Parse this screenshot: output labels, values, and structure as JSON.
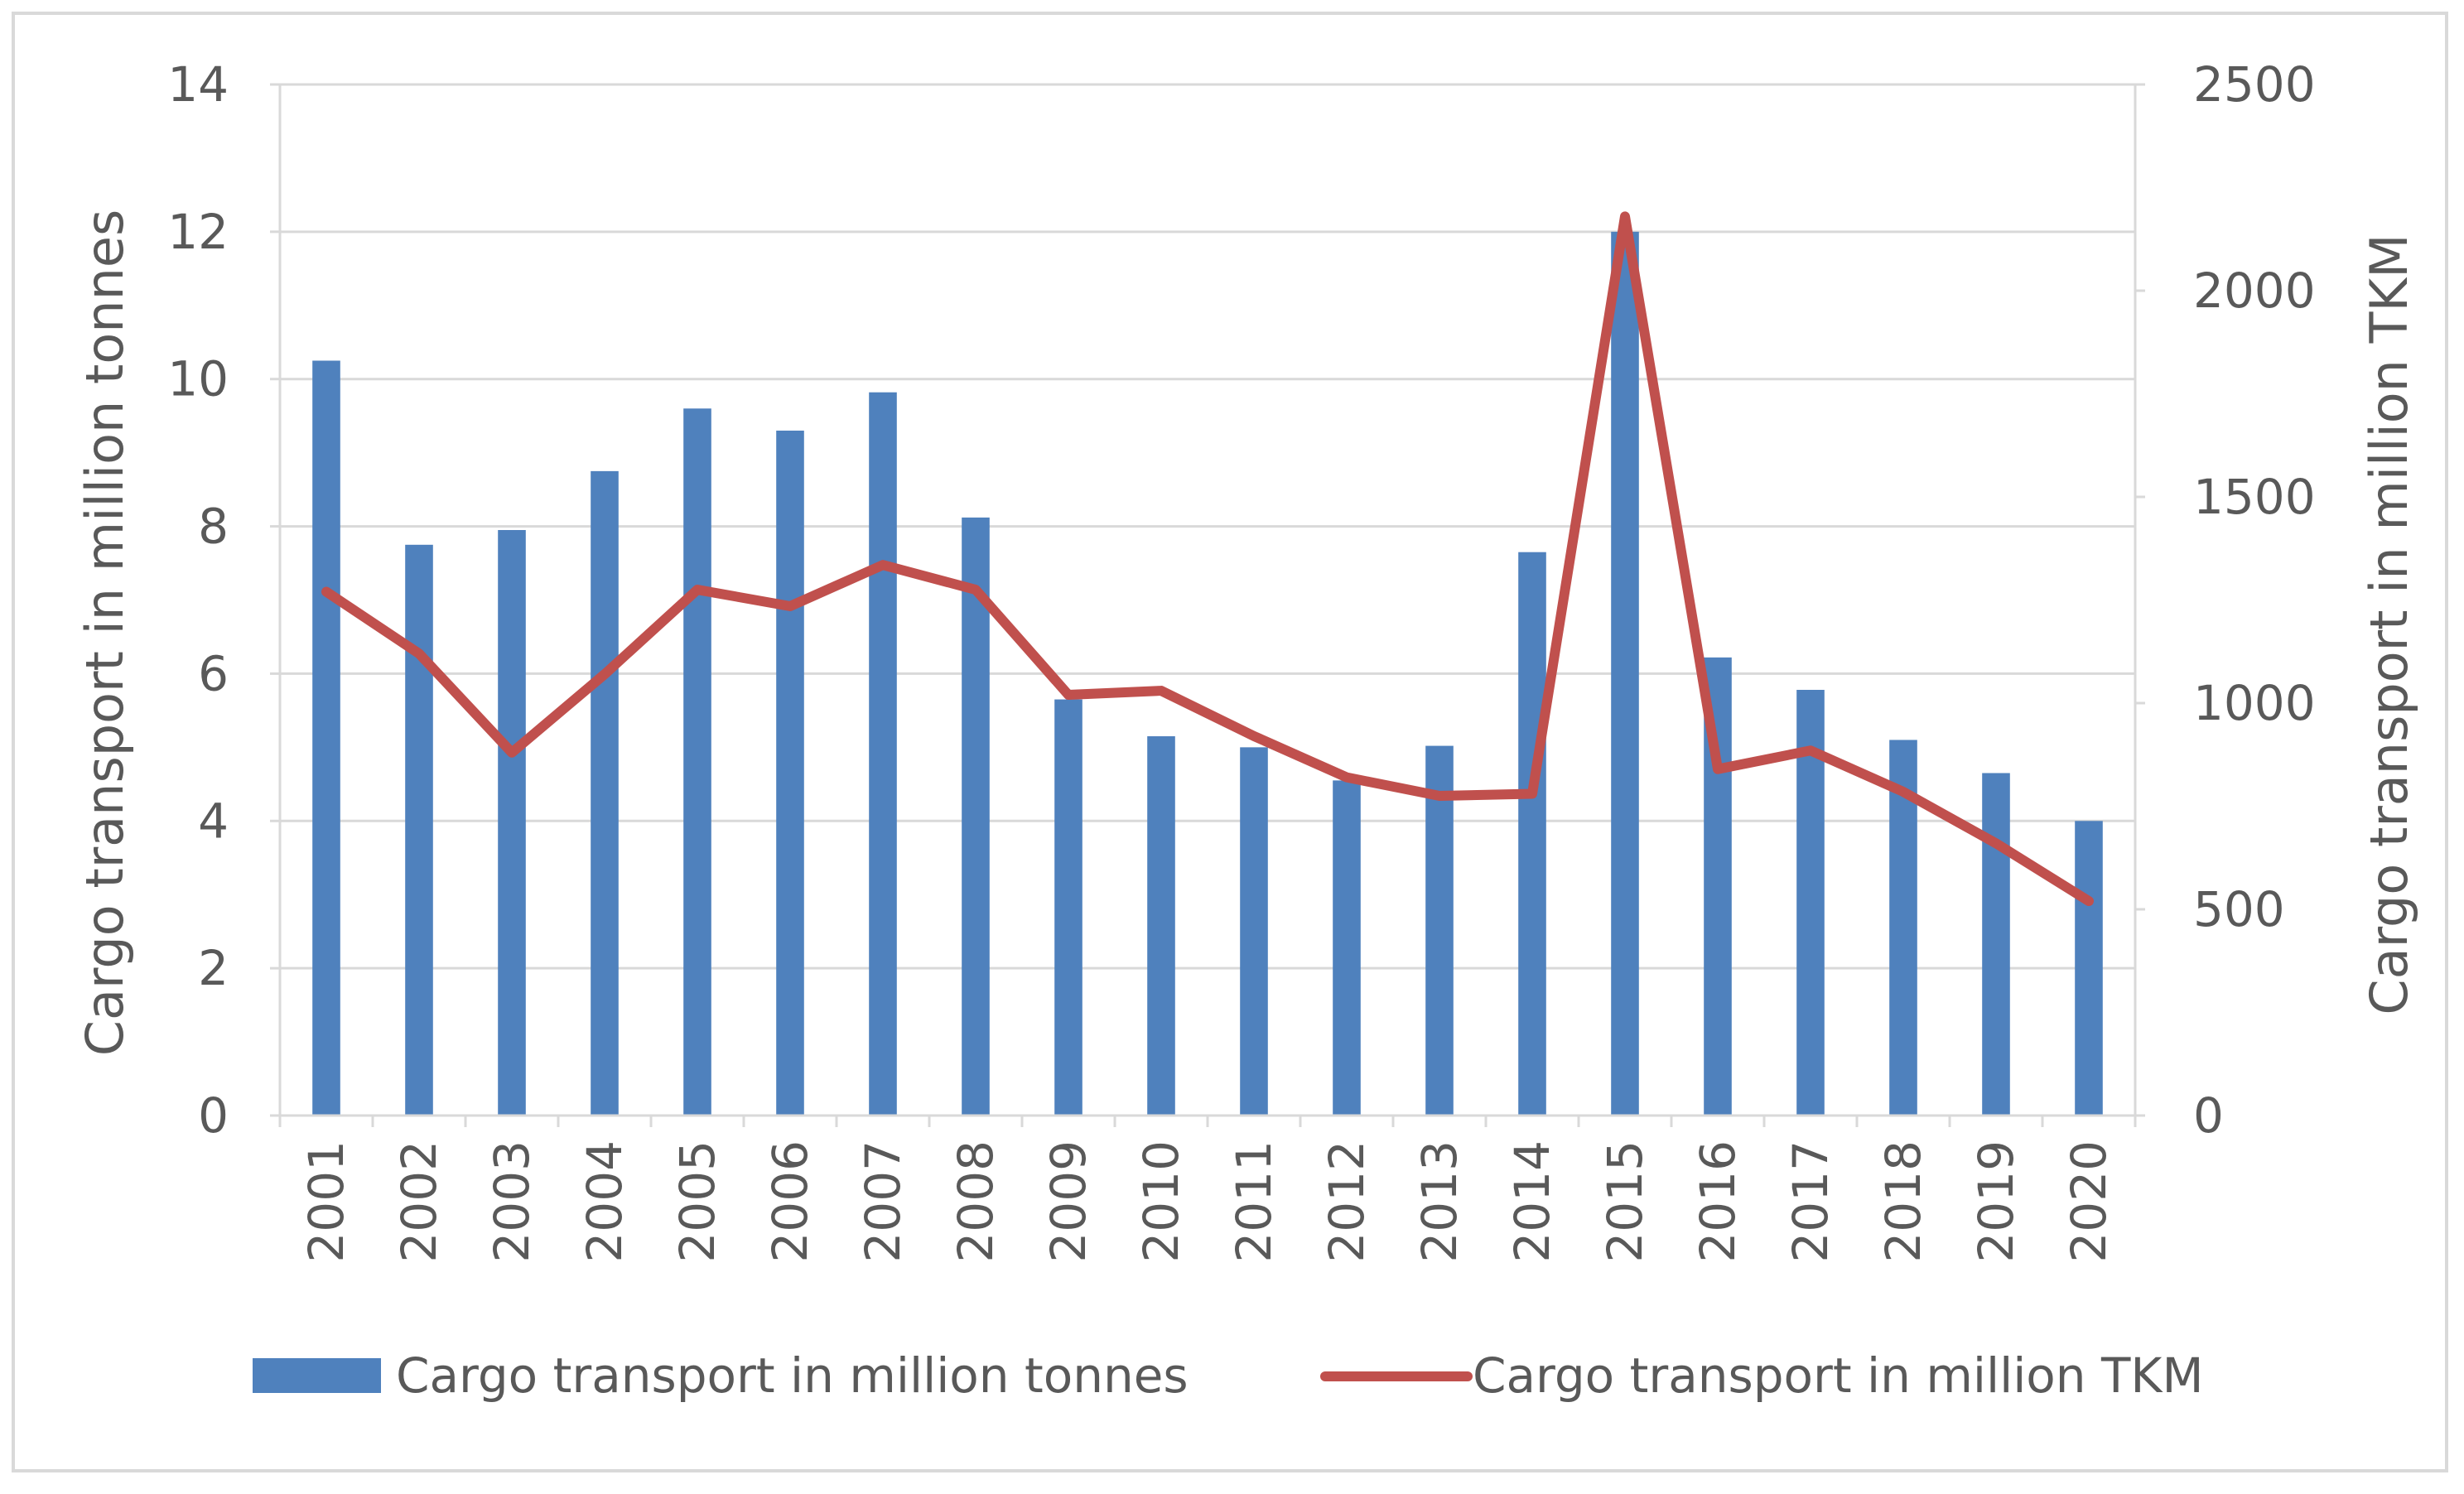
{
  "chart_data": {
    "type": "bar+line",
    "categories": [
      "2001",
      "2002",
      "2003",
      "2004",
      "2005",
      "2006",
      "2007",
      "2008",
      "2009",
      "2010",
      "2011",
      "2012",
      "2013",
      "2014",
      "2015",
      "2016",
      "2017",
      "2018",
      "2019",
      "2020"
    ],
    "series": [
      {
        "name": "Cargo transport in million tonnes",
        "type": "bar",
        "axis": "left",
        "color": "#4f81bd",
        "values": [
          10.25,
          7.75,
          7.95,
          8.75,
          9.6,
          9.3,
          9.82,
          8.12,
          5.65,
          5.15,
          5.0,
          4.55,
          5.02,
          7.65,
          12.0,
          6.22,
          5.78,
          5.1,
          4.65,
          4.0
        ]
      },
      {
        "name": "Cargo transport in million TKM",
        "type": "line",
        "axis": "right",
        "color": "#c0504d",
        "values": [
          1270,
          1120,
          880,
          1070,
          1275,
          1235,
          1335,
          1275,
          1020,
          1030,
          920,
          820,
          775,
          780,
          2180,
          840,
          885,
          785,
          660,
          520
        ]
      }
    ],
    "title": "",
    "xlabel": "",
    "ylabel": "Cargo transport in million tonnes",
    "y2label": "Cargo transport in million TKM",
    "ylim": [
      0,
      14
    ],
    "y2lim": [
      0,
      2500
    ],
    "yticks": [
      "0",
      "2",
      "4",
      "6",
      "8",
      "10",
      "12",
      "14"
    ],
    "y2ticks": [
      "0",
      "500",
      "1000",
      "1500",
      "2000",
      "2500"
    ],
    "grid": true,
    "legend": "bottom"
  }
}
